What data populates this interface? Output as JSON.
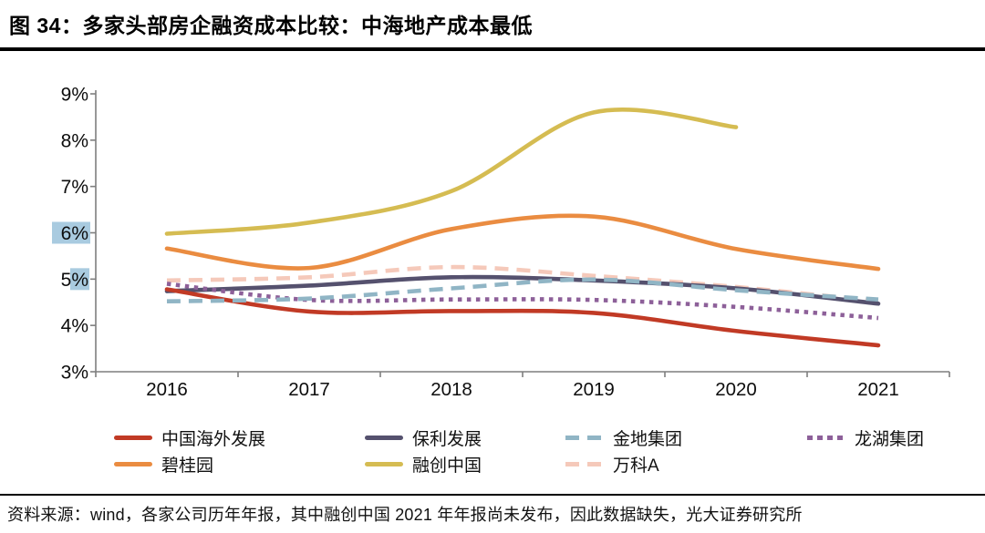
{
  "footer": {
    "source": "资料来源：wind，各家公司历年年报，其中融创中国 2021 年年报尚未发布，因此数据缺失，光大证券研究所"
  },
  "chart_data": {
    "type": "line",
    "title": "图 34：多家头部房企融资成本比较：中海地产成本最低",
    "x": [
      "2016",
      "2017",
      "2018",
      "2019",
      "2020",
      "2021"
    ],
    "ylim": [
      3,
      9
    ],
    "xlabel": "",
    "ylabel": "",
    "unit": "%",
    "grid": false,
    "smooth": true,
    "axis_color": "#7f7f7f",
    "tick_highlight_color": "#a9cbe0",
    "yticks": [
      {
        "label": "9%",
        "highlight": "none"
      },
      {
        "label": "8%",
        "highlight": "none"
      },
      {
        "label": "7%",
        "highlight": "none"
      },
      {
        "label": "6%",
        "highlight": "all"
      },
      {
        "label": "5%",
        "highlight": "suffix"
      },
      {
        "label": "4%",
        "highlight": "none"
      },
      {
        "label": "3%",
        "highlight": "none"
      }
    ],
    "legend_position": "bottom",
    "legend_rows": [
      [
        "中国海外发展",
        "保利发展",
        "金地集团",
        "龙湖集团"
      ],
      [
        "碧桂园",
        "融创中国",
        "万科A"
      ]
    ],
    "series": [
      {
        "id": "china-overseas",
        "name": "中国海外发展",
        "color": "#c13a25",
        "style": "solid",
        "z": 4,
        "values": [
          4.78,
          4.3,
          4.31,
          4.27,
          3.88,
          3.57
        ]
      },
      {
        "id": "poly",
        "name": "保利发展",
        "color": "#55516e",
        "style": "solid",
        "z": 2,
        "values": [
          4.74,
          4.86,
          5.04,
          4.97,
          4.8,
          4.47
        ]
      },
      {
        "id": "gemdale",
        "name": "金地集团",
        "color": "#90b5c5",
        "style": "dashed",
        "z": 5,
        "values": [
          4.52,
          4.58,
          4.8,
          4.99,
          4.76,
          4.56
        ]
      },
      {
        "id": "longfor",
        "name": "龙湖集团",
        "color": "#8d6099",
        "style": "dotted",
        "z": 3,
        "values": [
          4.9,
          4.55,
          4.56,
          4.55,
          4.4,
          4.16
        ]
      },
      {
        "id": "country-garden",
        "name": "碧桂园",
        "color": "#ea8c41",
        "style": "solid",
        "z": 6,
        "values": [
          5.66,
          5.24,
          6.08,
          6.35,
          5.65,
          5.22
        ]
      },
      {
        "id": "sunac",
        "name": "融创中国",
        "color": "#d5bc52",
        "style": "solid",
        "z": 7,
        "values": [
          5.98,
          6.22,
          6.9,
          8.6,
          8.28,
          null
        ]
      },
      {
        "id": "vanke-a",
        "name": "万科A",
        "color": "#f5c9ba",
        "style": "dashed",
        "z": 1,
        "values": [
          4.97,
          5.04,
          5.26,
          5.07,
          4.83,
          4.52
        ]
      }
    ]
  }
}
